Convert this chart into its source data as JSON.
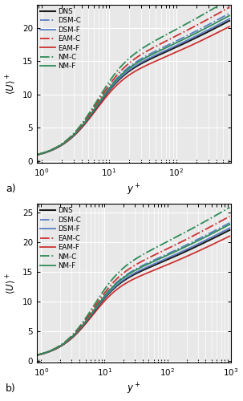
{
  "xlabel": "$y^+$",
  "ylabel": "$\\langle U \\rangle^+$",
  "xlim_a": [
    0.85,
    650
  ],
  "xlim_b": [
    0.85,
    1000
  ],
  "ylim_a": [
    -0.3,
    23.5
  ],
  "ylim_b": [
    -0.3,
    26.5
  ],
  "yticks_a": [
    0,
    5,
    10,
    15,
    20
  ],
  "yticks_b": [
    0,
    5,
    10,
    15,
    20,
    25
  ],
  "legend_labels": [
    "DNS",
    "DSM-C",
    "DSM-F",
    "EAM-C",
    "EAM-F",
    "NM-C",
    "NM-F"
  ],
  "colors": {
    "DNS": "#1a1a1a",
    "DSM-C": "#5b7fc4",
    "DSM-F": "#5b7fc4",
    "EAM-C": "#cc3333",
    "EAM-F": "#cc3333",
    "NM-C": "#2e8b57",
    "NM-F": "#2e8b57"
  },
  "linestyles": {
    "DNS": "-",
    "DSM-C": "-.",
    "DSM-F": "-",
    "EAM-C": "-.",
    "EAM-F": "-",
    "NM-C": "-.",
    "NM-F": "-"
  },
  "linewidths": {
    "DNS": 1.5,
    "DSM-C": 1.3,
    "DSM-F": 1.3,
    "EAM-C": 1.3,
    "EAM-F": 1.3,
    "NM-C": 1.3,
    "NM-F": 1.3
  },
  "background_color": "#e8e8e8",
  "grid_color": "#ffffff",
  "label_a": "a)",
  "label_b": "b)"
}
